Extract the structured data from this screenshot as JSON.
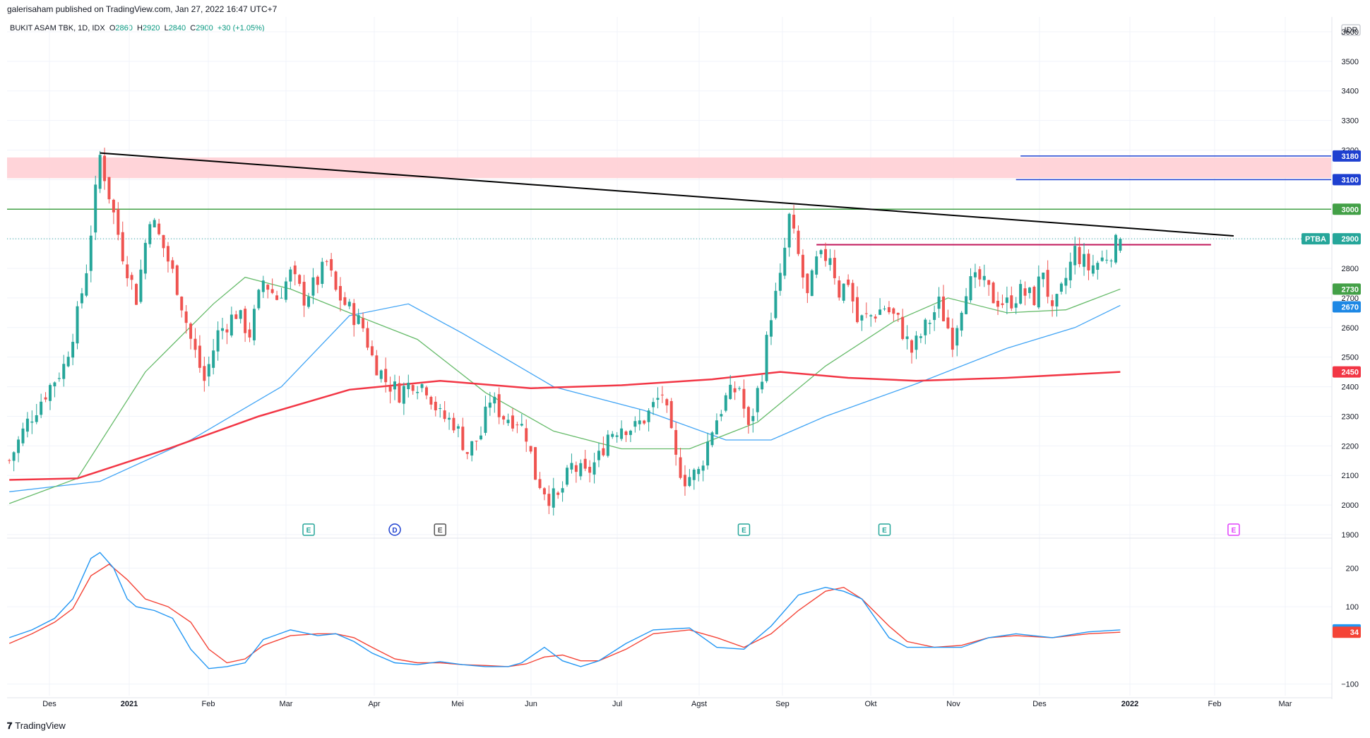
{
  "header": {
    "caption": "galerisaham published on TradingView.com, Jan 27, 2022 16:47 UTC+7"
  },
  "legend": {
    "symbol": "BUKIT ASAM TBK, 1D, IDX",
    "o_label": "O",
    "o_value": "2860",
    "h_label": "H",
    "h_value": "2920",
    "l_label": "L",
    "l_value": "2840",
    "c_label": "C",
    "c_value": "2900",
    "change": "+30 (+1.05%)"
  },
  "footer": {
    "logo_text": "TradingView"
  },
  "colors": {
    "up": "#26a69a",
    "down": "#ef5350",
    "ma_blue": "#42a5f5",
    "ma_green": "#66bb6a",
    "ma_red": "#f23645",
    "resistance_zone": "#ffcdd2",
    "trend": "#000000",
    "level_green": "#43a047",
    "level_blue": "#1e40d0",
    "level_red": "#c2185b",
    "osc_blue": "#2196f3",
    "osc_red": "#f44336",
    "badge_dark": "#26a69a"
  },
  "chart_data": {
    "type": "candlestick",
    "currency": "IDR",
    "price_axis": {
      "ylim": [
        1900,
        3650
      ],
      "ticks": [
        1900,
        2000,
        2100,
        2200,
        2300,
        2400,
        2500,
        2600,
        2700,
        2800,
        2900,
        3000,
        3100,
        3200,
        3300,
        3400,
        3500,
        3600
      ]
    },
    "x_axis": {
      "ticks": [
        "Des",
        "2021",
        "Feb",
        "Mar",
        "Apr",
        "Mei",
        "Jun",
        "Jul",
        "Agst",
        "Sep",
        "Okt",
        "Nov",
        "Des",
        "2022",
        "Feb",
        "Mar"
      ],
      "bold_ticks": [
        "2021",
        "2022"
      ]
    },
    "price_path": [
      [
        0,
        2150
      ],
      [
        4,
        2280
      ],
      [
        8,
        2380
      ],
      [
        12,
        2470
      ],
      [
        15,
        2640
      ],
      [
        17,
        2800
      ],
      [
        20,
        3180
      ],
      [
        22,
        3050
      ],
      [
        25,
        2850
      ],
      [
        28,
        2700
      ],
      [
        31,
        2980
      ],
      [
        34,
        2870
      ],
      [
        37,
        2740
      ],
      [
        40,
        2560
      ],
      [
        43,
        2420
      ],
      [
        46,
        2580
      ],
      [
        50,
        2650
      ],
      [
        53,
        2580
      ],
      [
        56,
        2760
      ],
      [
        59,
        2700
      ],
      [
        62,
        2780
      ],
      [
        65,
        2700
      ],
      [
        68,
        2760
      ],
      [
        70,
        2820
      ],
      [
        72,
        2720
      ],
      [
        75,
        2660
      ],
      [
        78,
        2600
      ],
      [
        80,
        2500
      ],
      [
        83,
        2420
      ],
      [
        86,
        2380
      ],
      [
        89,
        2420
      ],
      [
        92,
        2400
      ],
      [
        95,
        2300
      ],
      [
        98,
        2280
      ],
      [
        101,
        2180
      ],
      [
        104,
        2240
      ],
      [
        106,
        2360
      ],
      [
        109,
        2300
      ],
      [
        112,
        2290
      ],
      [
        114,
        2240
      ],
      [
        116,
        2100
      ],
      [
        119,
        2030
      ],
      [
        121,
        2020
      ],
      [
        124,
        2130
      ],
      [
        127,
        2100
      ],
      [
        130,
        2160
      ],
      [
        132,
        2240
      ],
      [
        135,
        2270
      ],
      [
        138,
        2260
      ],
      [
        141,
        2310
      ],
      [
        144,
        2380
      ],
      [
        147,
        2150
      ],
      [
        149,
        2090
      ],
      [
        152,
        2110
      ],
      [
        155,
        2260
      ],
      [
        158,
        2360
      ],
      [
        161,
        2400
      ],
      [
        163,
        2250
      ],
      [
        166,
        2450
      ],
      [
        168,
        2650
      ],
      [
        170,
        2760
      ],
      [
        172,
        2970
      ],
      [
        174,
        2840
      ],
      [
        176,
        2700
      ],
      [
        178,
        2820
      ],
      [
        181,
        2850
      ],
      [
        183,
        2720
      ],
      [
        185,
        2760
      ],
      [
        187,
        2620
      ],
      [
        190,
        2640
      ],
      [
        193,
        2670
      ],
      [
        196,
        2620
      ],
      [
        199,
        2520
      ],
      [
        202,
        2600
      ],
      [
        205,
        2680
      ],
      [
        208,
        2560
      ],
      [
        211,
        2740
      ],
      [
        214,
        2760
      ],
      [
        217,
        2700
      ],
      [
        220,
        2680
      ],
      [
        223,
        2720
      ],
      [
        226,
        2700
      ],
      [
        228,
        2800
      ],
      [
        230,
        2640
      ],
      [
        232,
        2720
      ],
      [
        235,
        2860
      ],
      [
        238,
        2800
      ],
      [
        241,
        2830
      ],
      [
        243,
        2860
      ],
      [
        245,
        2900
      ]
    ],
    "moving_averages": [
      {
        "color": "ma_blue",
        "points": [
          [
            0,
            2045
          ],
          [
            20,
            2080
          ],
          [
            40,
            2220
          ],
          [
            60,
            2400
          ],
          [
            75,
            2640
          ],
          [
            88,
            2680
          ],
          [
            100,
            2580
          ],
          [
            120,
            2400
          ],
          [
            140,
            2320
          ],
          [
            158,
            2220
          ],
          [
            168,
            2220
          ],
          [
            180,
            2300
          ],
          [
            200,
            2410
          ],
          [
            220,
            2530
          ],
          [
            235,
            2600
          ],
          [
            245,
            2675
          ]
        ]
      },
      {
        "color": "ma_green",
        "points": [
          [
            0,
            2005
          ],
          [
            15,
            2090
          ],
          [
            30,
            2450
          ],
          [
            45,
            2680
          ],
          [
            52,
            2770
          ],
          [
            62,
            2730
          ],
          [
            75,
            2650
          ],
          [
            90,
            2560
          ],
          [
            105,
            2380
          ],
          [
            120,
            2250
          ],
          [
            135,
            2190
          ],
          [
            150,
            2190
          ],
          [
            165,
            2280
          ],
          [
            180,
            2470
          ],
          [
            195,
            2620
          ],
          [
            207,
            2700
          ],
          [
            220,
            2650
          ],
          [
            233,
            2660
          ],
          [
            245,
            2730
          ]
        ]
      },
      {
        "color": "ma_red",
        "points": [
          [
            0,
            2085
          ],
          [
            15,
            2090
          ],
          [
            35,
            2190
          ],
          [
            55,
            2300
          ],
          [
            75,
            2390
          ],
          [
            95,
            2420
          ],
          [
            115,
            2395
          ],
          [
            135,
            2405
          ],
          [
            155,
            2425
          ],
          [
            170,
            2450
          ],
          [
            185,
            2430
          ],
          [
            200,
            2420
          ],
          [
            220,
            2430
          ],
          [
            245,
            2450
          ]
        ]
      }
    ],
    "resistance_zone": {
      "from": 3105,
      "to": 3175
    },
    "trend_line": {
      "from": [
        20,
        3190
      ],
      "to": [
        270,
        2910
      ]
    },
    "levels": [
      {
        "value": 3000,
        "color": "level_green",
        "full_width": true
      },
      {
        "value": 3180,
        "color": "level_blue",
        "from_index": 223
      },
      {
        "value": 3100,
        "color": "level_blue",
        "from_index": 222
      },
      {
        "value": 2880,
        "color": "level_red",
        "from_index": 178,
        "to_index": 265
      }
    ],
    "last_price": 2900,
    "price_badges": [
      {
        "label": "3180",
        "value": 3180,
        "color": "#1e40d0"
      },
      {
        "label": "3100",
        "value": 3100,
        "color": "#1e40d0"
      },
      {
        "label": "3000",
        "value": 3000,
        "color": "#43a047"
      },
      {
        "label": "2900",
        "value": 2900,
        "color": "#26a69a",
        "ticker": "PTBA"
      },
      {
        "label": "2730",
        "value": 2730,
        "color": "#43a047"
      },
      {
        "label": "2670",
        "value": 2670,
        "color": "#1e88e5"
      },
      {
        "label": "2450",
        "value": 2450,
        "color": "#f23645"
      }
    ],
    "events": [
      {
        "label": "E",
        "index": 66,
        "color": "#26a69a"
      },
      {
        "label": "D",
        "index": 85,
        "color": "#1e40d0",
        "round": true
      },
      {
        "label": "E",
        "index": 95,
        "color": "#555555"
      },
      {
        "label": "E",
        "index": 162,
        "color": "#26a69a"
      },
      {
        "label": "E",
        "index": 193,
        "color": "#26a69a"
      },
      {
        "label": "E",
        "index": 270,
        "color": "#e040fb"
      }
    ],
    "oscillator": {
      "ylim": [
        -130,
        270
      ],
      "ticks": [
        200,
        100,
        -100
      ],
      "blue_path": [
        [
          0,
          20
        ],
        [
          5,
          40
        ],
        [
          10,
          70
        ],
        [
          14,
          120
        ],
        [
          18,
          225
        ],
        [
          20,
          240
        ],
        [
          23,
          200
        ],
        [
          26,
          120
        ],
        [
          28,
          100
        ],
        [
          32,
          90
        ],
        [
          36,
          70
        ],
        [
          40,
          -10
        ],
        [
          44,
          -60
        ],
        [
          48,
          -55
        ],
        [
          52,
          -45
        ],
        [
          56,
          15
        ],
        [
          62,
          40
        ],
        [
          68,
          25
        ],
        [
          72,
          30
        ],
        [
          76,
          10
        ],
        [
          80,
          -20
        ],
        [
          85,
          -45
        ],
        [
          90,
          -50
        ],
        [
          95,
          -42
        ],
        [
          100,
          -50
        ],
        [
          105,
          -55
        ],
        [
          110,
          -55
        ],
        [
          113,
          -45
        ],
        [
          118,
          -5
        ],
        [
          122,
          -40
        ],
        [
          126,
          -55
        ],
        [
          130,
          -40
        ],
        [
          136,
          5
        ],
        [
          142,
          40
        ],
        [
          150,
          45
        ],
        [
          156,
          -5
        ],
        [
          162,
          -10
        ],
        [
          168,
          50
        ],
        [
          174,
          130
        ],
        [
          180,
          150
        ],
        [
          184,
          140
        ],
        [
          188,
          120
        ],
        [
          194,
          20
        ],
        [
          198,
          -5
        ],
        [
          204,
          -5
        ],
        [
          210,
          -5
        ],
        [
          216,
          20
        ],
        [
          222,
          30
        ],
        [
          230,
          20
        ],
        [
          238,
          35
        ],
        [
          245,
          40
        ]
      ],
      "red_path": [
        [
          0,
          5
        ],
        [
          5,
          30
        ],
        [
          10,
          60
        ],
        [
          14,
          95
        ],
        [
          18,
          180
        ],
        [
          22,
          210
        ],
        [
          26,
          170
        ],
        [
          30,
          120
        ],
        [
          35,
          100
        ],
        [
          40,
          60
        ],
        [
          44,
          -10
        ],
        [
          48,
          -45
        ],
        [
          52,
          -35
        ],
        [
          56,
          0
        ],
        [
          62,
          25
        ],
        [
          68,
          30
        ],
        [
          72,
          30
        ],
        [
          76,
          20
        ],
        [
          80,
          -5
        ],
        [
          85,
          -35
        ],
        [
          90,
          -45
        ],
        [
          95,
          -45
        ],
        [
          100,
          -50
        ],
        [
          105,
          -52
        ],
        [
          110,
          -55
        ],
        [
          114,
          -48
        ],
        [
          118,
          -30
        ],
        [
          122,
          -25
        ],
        [
          126,
          -40
        ],
        [
          130,
          -40
        ],
        [
          136,
          -10
        ],
        [
          142,
          30
        ],
        [
          150,
          40
        ],
        [
          156,
          20
        ],
        [
          162,
          -5
        ],
        [
          168,
          30
        ],
        [
          174,
          90
        ],
        [
          180,
          140
        ],
        [
          184,
          150
        ],
        [
          188,
          120
        ],
        [
          194,
          50
        ],
        [
          198,
          10
        ],
        [
          204,
          -5
        ],
        [
          210,
          0
        ],
        [
          216,
          20
        ],
        [
          222,
          25
        ],
        [
          230,
          20
        ],
        [
          238,
          30
        ],
        [
          245,
          34
        ]
      ],
      "badges": [
        {
          "label": "40",
          "value": 40,
          "color": "#2196f3"
        },
        {
          "label": "34",
          "value": 34,
          "color": "#f44336"
        }
      ]
    }
  }
}
